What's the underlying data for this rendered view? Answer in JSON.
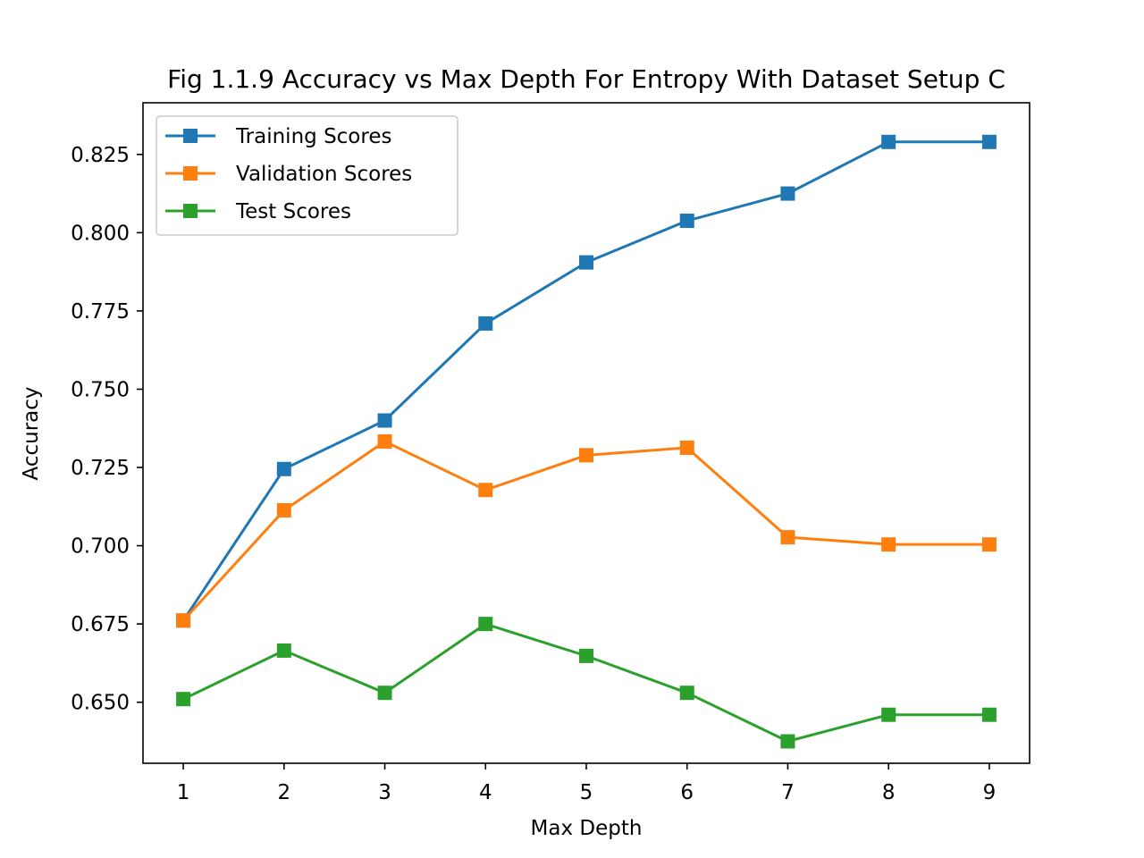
{
  "chart_data": {
    "type": "line",
    "title": "Fig 1.1.9 Accuracy vs Max Depth For Entropy With Dataset Setup C",
    "xlabel": "Max Depth",
    "ylabel": "Accuracy",
    "x": [
      1,
      2,
      3,
      4,
      5,
      6,
      7,
      8,
      9
    ],
    "xlim": [
      0.6,
      9.4
    ],
    "ylim": [
      0.6305,
      0.8415
    ],
    "xticks": [
      1,
      2,
      3,
      4,
      5,
      6,
      7,
      8,
      9
    ],
    "xtick_labels": [
      "1",
      "2",
      "3",
      "4",
      "5",
      "6",
      "7",
      "8",
      "9"
    ],
    "yticks": [
      0.65,
      0.675,
      0.7,
      0.725,
      0.75,
      0.775,
      0.8,
      0.825
    ],
    "ytick_labels": [
      "0.650",
      "0.675",
      "0.700",
      "0.725",
      "0.750",
      "0.775",
      "0.800",
      "0.825"
    ],
    "grid": false,
    "legend_position": "top-left",
    "marker": "square",
    "series": [
      {
        "name": "Training Scores",
        "color": "#1f77b4",
        "values": [
          0.6761,
          0.7245,
          0.74,
          0.771,
          0.7905,
          0.8038,
          0.8125,
          0.829,
          0.829
        ]
      },
      {
        "name": "Validation Scores",
        "color": "#ff7f0e",
        "values": [
          0.6761,
          0.7113,
          0.7333,
          0.7178,
          0.7289,
          0.7313,
          0.7027,
          0.7004,
          0.7004
        ]
      },
      {
        "name": "Test Scores",
        "color": "#2ca02c",
        "values": [
          0.651,
          0.6665,
          0.653,
          0.675,
          0.6648,
          0.653,
          0.6375,
          0.646,
          0.646
        ]
      }
    ]
  }
}
